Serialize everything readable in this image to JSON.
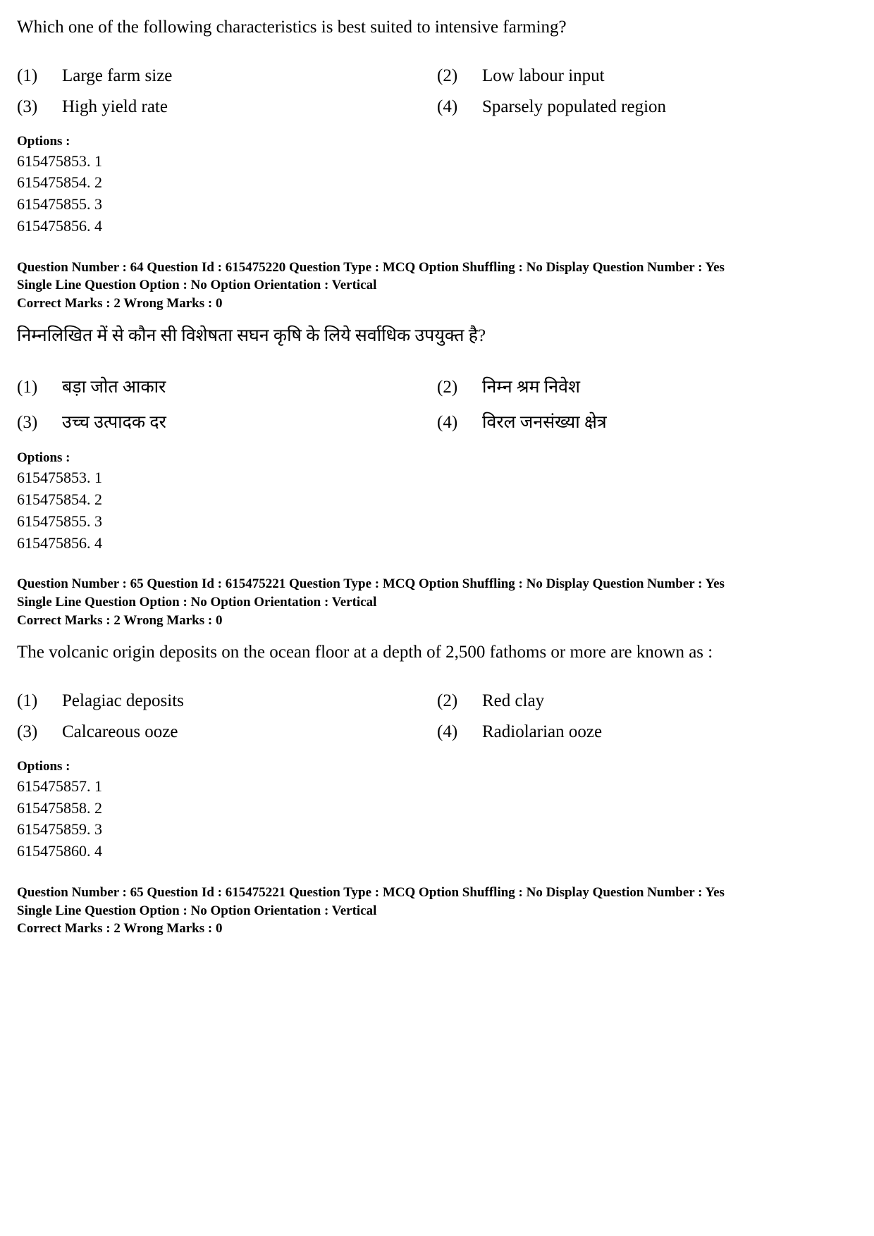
{
  "q1": {
    "question_text": "Which one of the following characteristics is best suited to intensive farming?",
    "answers": [
      {
        "num": "(1)",
        "text": "Large farm size"
      },
      {
        "num": "(2)",
        "text": "Low labour input"
      },
      {
        "num": "(3)",
        "text": "High yield rate"
      },
      {
        "num": "(4)",
        "text": "Sparsely populated region"
      }
    ],
    "options_label": "Options :",
    "options": [
      "615475853. 1",
      "615475854. 2",
      "615475855. 3",
      "615475856. 4"
    ]
  },
  "meta1": {
    "line1": "Question Number : 64  Question Id : 615475220  Question Type : MCQ  Option Shuffling : No  Display Question Number : Yes",
    "line2": "Single Line Question Option : No  Option Orientation : Vertical",
    "line3": "Correct Marks : 2  Wrong Marks : 0"
  },
  "q2": {
    "question_text": "निम्नलिखित में से कौन सी विशेषता सघन कृषि के लिये सर्वाधिक उपयुक्त है?",
    "answers": [
      {
        "num": "(1)",
        "text": "बड़ा जोत आकार"
      },
      {
        "num": "(2)",
        "text": "निम्न श्रम निवेश"
      },
      {
        "num": "(3)",
        "text": "उच्च उत्पादक दर"
      },
      {
        "num": "(4)",
        "text": "विरल जनसंख्या क्षेत्र"
      }
    ],
    "options_label": "Options :",
    "options": [
      "615475853. 1",
      "615475854. 2",
      "615475855. 3",
      "615475856. 4"
    ]
  },
  "meta2": {
    "line1": "Question Number : 65  Question Id : 615475221  Question Type : MCQ  Option Shuffling : No  Display Question Number : Yes",
    "line2": "Single Line Question Option : No  Option Orientation : Vertical",
    "line3": "Correct Marks : 2  Wrong Marks : 0"
  },
  "q3": {
    "question_text": "The volcanic origin deposits on the ocean floor at a depth of 2,500 fathoms or more are known as :",
    "answers": [
      {
        "num": "(1)",
        "text": "Pelagiac deposits"
      },
      {
        "num": "(2)",
        "text": "Red clay"
      },
      {
        "num": "(3)",
        "text": "Calcareous ooze"
      },
      {
        "num": "(4)",
        "text": "Radiolarian ooze"
      }
    ],
    "options_label": "Options :",
    "options": [
      "615475857. 1",
      "615475858. 2",
      "615475859. 3",
      "615475860. 4"
    ]
  },
  "meta3": {
    "line1": "Question Number : 65  Question Id : 615475221  Question Type : MCQ  Option Shuffling : No  Display Question Number : Yes",
    "line2": "Single Line Question Option : No  Option Orientation : Vertical",
    "line3": "Correct Marks : 2  Wrong Marks : 0"
  }
}
